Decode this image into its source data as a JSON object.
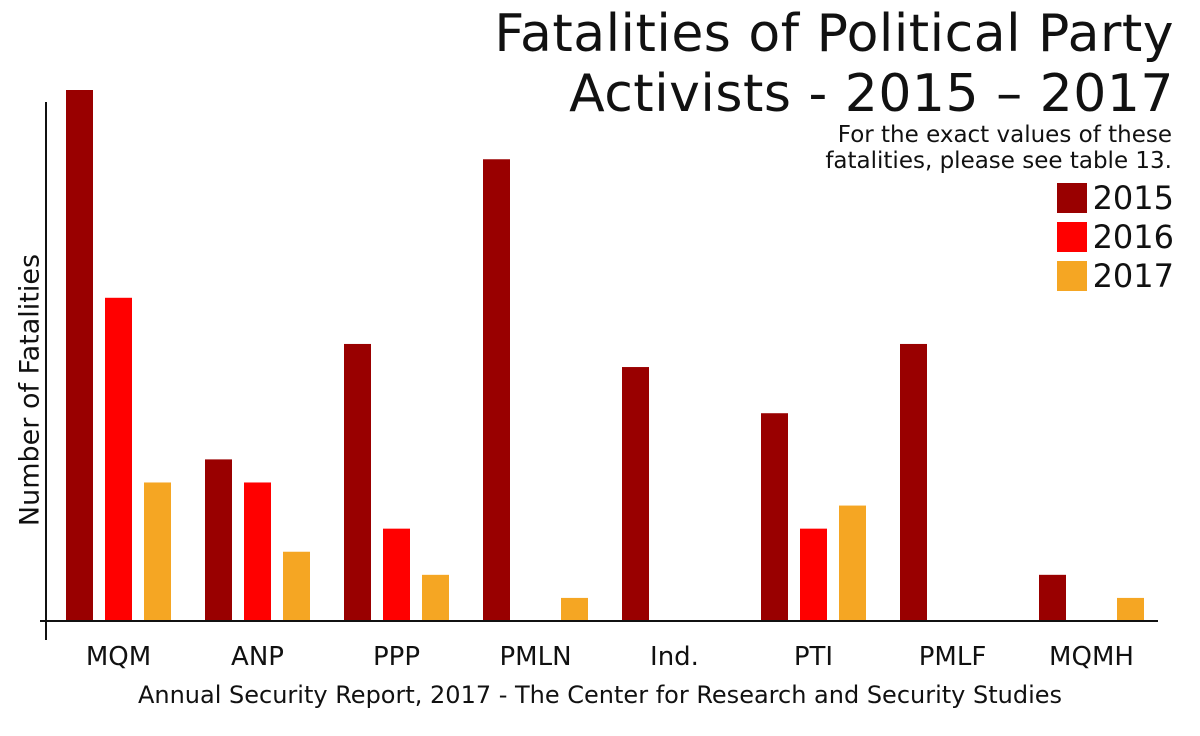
{
  "chart_data": {
    "type": "bar",
    "title_lines": [
      "Fatalities of Political Party",
      "Activists - 2015 – 2017"
    ],
    "subtitle_lines": [
      "For the exact values of these",
      "fatalities, please see table 13."
    ],
    "ylabel": "Number of Fatalities",
    "caption": "Annual Security Report, 2017 - The Center for Research and Security Studies",
    "categories": [
      "MQM",
      "ANP",
      "PPP",
      "PMLN",
      "Ind.",
      "PTI",
      "PMLF",
      "MQMH"
    ],
    "series": [
      {
        "name": "2015",
        "color": "#990000",
        "values": [
          23,
          7,
          12,
          20,
          11,
          9,
          12,
          2
        ]
      },
      {
        "name": "2016",
        "color": "#ff0000",
        "values": [
          14,
          6,
          4,
          0,
          0,
          4,
          0,
          0
        ]
      },
      {
        "name": "2017",
        "color": "#f5a623",
        "values": [
          6,
          3,
          2,
          1,
          0,
          5,
          0,
          1
        ]
      }
    ],
    "ylim": [
      0,
      23
    ],
    "grid": false,
    "legend_position": "top-right"
  }
}
